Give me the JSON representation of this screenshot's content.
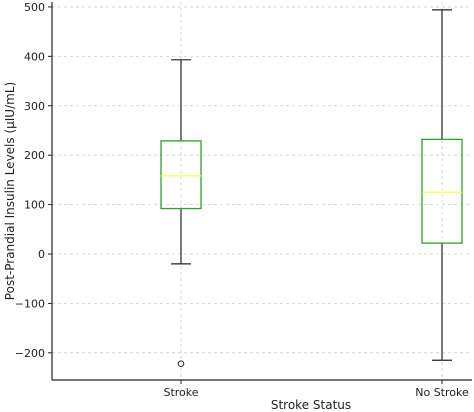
{
  "chart_data": {
    "type": "box",
    "xlabel": "Stroke Status",
    "ylabel": "Post-Prandial Insulin Levels (µIU/mL)",
    "ylim": [
      -255,
      510
    ],
    "yticks": [
      -200,
      -100,
      0,
      100,
      200,
      300,
      400,
      500
    ],
    "ytick_labels": [
      "−200",
      "−100",
      "0",
      "100",
      "200",
      "300",
      "400",
      "500"
    ],
    "grid": true,
    "categories": [
      "Stroke",
      "No Stroke"
    ],
    "boxes": [
      {
        "label": "Stroke",
        "whisker_low": -20,
        "q1": 92,
        "median": 158,
        "q3": 229,
        "whisker_high": 393,
        "outliers": [
          -222
        ]
      },
      {
        "label": "No Stroke",
        "whisker_low": -215,
        "q1": 22,
        "median": 125,
        "q3": 232,
        "whisker_high": 494,
        "outliers": []
      }
    ],
    "colors": {
      "box": "#2ca02c",
      "median": "#ffff66",
      "whisker": "#222222",
      "grid": "#cccccc"
    }
  }
}
